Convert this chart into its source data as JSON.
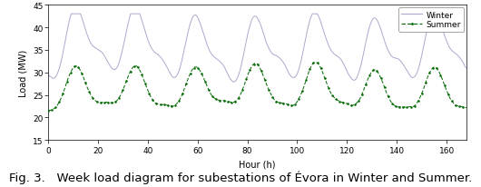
{
  "xlabel": "Hour (h)",
  "ylabel": "Load (MW)",
  "xlim": [
    0,
    168
  ],
  "ylim": [
    15,
    45
  ],
  "xticks": [
    0,
    20,
    40,
    60,
    80,
    100,
    120,
    140,
    160
  ],
  "yticks": [
    15,
    20,
    25,
    30,
    35,
    40,
    45
  ],
  "winter_color": "#aaaacc",
  "summer_color": "#006600",
  "legend_entries": [
    "Winter",
    "Summer"
  ],
  "caption": "Fig. 3.   Week load diagram for subestations of Évora in Winter and Summer.",
  "caption_fontsize": 9.5
}
